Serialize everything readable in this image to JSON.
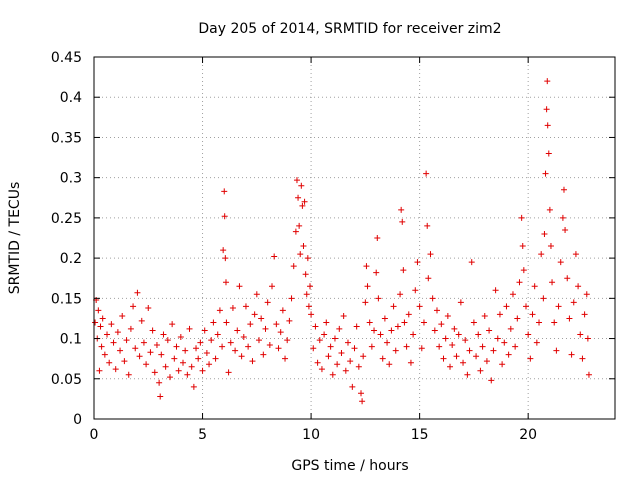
{
  "chart_data": {
    "type": "scatter",
    "title": "Day 205 of 2014, SRMTID for receiver zim2",
    "xlabel": "GPS time / hours",
    "ylabel": "SRMTID / TECUs",
    "xlim": [
      0,
      24
    ],
    "ylim": [
      0,
      0.45
    ],
    "xticks": [
      0,
      5,
      10,
      15,
      20
    ],
    "xtick_labels": [
      "0",
      "5",
      "10",
      "15",
      "20"
    ],
    "yticks": [
      0,
      0.05,
      0.1,
      0.15,
      0.2,
      0.25,
      0.3,
      0.35,
      0.4,
      0.45
    ],
    "ytick_labels": [
      "0",
      "0.05",
      "0.1",
      "0.15",
      "0.2",
      "0.25",
      "0.3",
      "0.35",
      "0.4",
      "0.45"
    ],
    "grid": true,
    "marker": "+",
    "color": "#e00000",
    "series": [
      {
        "name": "SRMTID",
        "points": [
          [
            0.05,
            0.12
          ],
          [
            0.1,
            0.148
          ],
          [
            0.15,
            0.1
          ],
          [
            0.2,
            0.135
          ],
          [
            0.25,
            0.06
          ],
          [
            0.3,
            0.115
          ],
          [
            0.35,
            0.09
          ],
          [
            0.4,
            0.125
          ],
          [
            0.5,
            0.08
          ],
          [
            0.6,
            0.105
          ],
          [
            0.7,
            0.07
          ],
          [
            0.8,
            0.118
          ],
          [
            0.9,
            0.095
          ],
          [
            1.0,
            0.062
          ],
          [
            1.1,
            0.108
          ],
          [
            1.2,
            0.085
          ],
          [
            1.3,
            0.128
          ],
          [
            1.4,
            0.072
          ],
          [
            1.5,
            0.098
          ],
          [
            1.6,
            0.055
          ],
          [
            1.7,
            0.112
          ],
          [
            1.8,
            0.14
          ],
          [
            1.9,
            0.088
          ],
          [
            2.0,
            0.157
          ],
          [
            2.1,
            0.078
          ],
          [
            2.2,
            0.122
          ],
          [
            2.3,
            0.095
          ],
          [
            2.4,
            0.068
          ],
          [
            2.5,
            0.138
          ],
          [
            2.6,
            0.083
          ],
          [
            2.7,
            0.11
          ],
          [
            2.8,
            0.058
          ],
          [
            2.9,
            0.092
          ],
          [
            3.0,
            0.045
          ],
          [
            3.05,
            0.028
          ],
          [
            3.1,
            0.08
          ],
          [
            3.2,
            0.105
          ],
          [
            3.3,
            0.065
          ],
          [
            3.4,
            0.098
          ],
          [
            3.5,
            0.052
          ],
          [
            3.6,
            0.118
          ],
          [
            3.7,
            0.075
          ],
          [
            3.8,
            0.09
          ],
          [
            3.9,
            0.06
          ],
          [
            4.0,
            0.102
          ],
          [
            4.1,
            0.07
          ],
          [
            4.2,
            0.085
          ],
          [
            4.3,
            0.055
          ],
          [
            4.4,
            0.112
          ],
          [
            4.5,
            0.065
          ],
          [
            4.6,
            0.04
          ],
          [
            4.7,
            0.088
          ],
          [
            4.8,
            0.075
          ],
          [
            4.9,
            0.095
          ],
          [
            5.0,
            0.06
          ],
          [
            5.1,
            0.11
          ],
          [
            5.2,
            0.082
          ],
          [
            5.3,
            0.068
          ],
          [
            5.4,
            0.098
          ],
          [
            5.5,
            0.12
          ],
          [
            5.6,
            0.075
          ],
          [
            5.7,
            0.105
          ],
          [
            5.8,
            0.135
          ],
          [
            5.9,
            0.09
          ],
          [
            5.95,
            0.21
          ],
          [
            6.0,
            0.283
          ],
          [
            6.02,
            0.252
          ],
          [
            6.05,
            0.2
          ],
          [
            6.08,
            0.17
          ],
          [
            6.1,
            0.12
          ],
          [
            6.2,
            0.058
          ],
          [
            6.3,
            0.095
          ],
          [
            6.4,
            0.138
          ],
          [
            6.5,
            0.085
          ],
          [
            6.6,
            0.11
          ],
          [
            6.7,
            0.165
          ],
          [
            6.8,
            0.078
          ],
          [
            6.9,
            0.102
          ],
          [
            7.0,
            0.14
          ],
          [
            7.1,
            0.09
          ],
          [
            7.2,
            0.118
          ],
          [
            7.3,
            0.072
          ],
          [
            7.4,
            0.13
          ],
          [
            7.5,
            0.155
          ],
          [
            7.6,
            0.098
          ],
          [
            7.7,
            0.125
          ],
          [
            7.8,
            0.08
          ],
          [
            7.9,
            0.112
          ],
          [
            8.0,
            0.145
          ],
          [
            8.1,
            0.092
          ],
          [
            8.2,
            0.165
          ],
          [
            8.3,
            0.202
          ],
          [
            8.4,
            0.118
          ],
          [
            8.5,
            0.088
          ],
          [
            8.6,
            0.108
          ],
          [
            8.7,
            0.135
          ],
          [
            8.8,
            0.075
          ],
          [
            8.9,
            0.098
          ],
          [
            9.0,
            0.122
          ],
          [
            9.1,
            0.15
          ],
          [
            9.2,
            0.19
          ],
          [
            9.3,
            0.233
          ],
          [
            9.35,
            0.297
          ],
          [
            9.4,
            0.275
          ],
          [
            9.45,
            0.24
          ],
          [
            9.5,
            0.205
          ],
          [
            9.55,
            0.29
          ],
          [
            9.6,
            0.265
          ],
          [
            9.65,
            0.215
          ],
          [
            9.7,
            0.27
          ],
          [
            9.75,
            0.18
          ],
          [
            9.8,
            0.155
          ],
          [
            9.85,
            0.2
          ],
          [
            9.9,
            0.14
          ],
          [
            9.95,
            0.165
          ],
          [
            10.0,
            0.13
          ],
          [
            10.1,
            0.088
          ],
          [
            10.2,
            0.115
          ],
          [
            10.3,
            0.07
          ],
          [
            10.4,
            0.098
          ],
          [
            10.5,
            0.062
          ],
          [
            10.6,
            0.105
          ],
          [
            10.7,
            0.12
          ],
          [
            10.8,
            0.078
          ],
          [
            10.9,
            0.09
          ],
          [
            11.0,
            0.055
          ],
          [
            11.1,
            0.1
          ],
          [
            11.2,
            0.068
          ],
          [
            11.3,
            0.112
          ],
          [
            11.4,
            0.082
          ],
          [
            11.5,
            0.128
          ],
          [
            11.6,
            0.06
          ],
          [
            11.7,
            0.095
          ],
          [
            11.8,
            0.072
          ],
          [
            11.9,
            0.04
          ],
          [
            12.0,
            0.088
          ],
          [
            12.1,
            0.115
          ],
          [
            12.2,
            0.065
          ],
          [
            12.3,
            0.032
          ],
          [
            12.35,
            0.022
          ],
          [
            12.4,
            0.078
          ],
          [
            12.5,
            0.145
          ],
          [
            12.55,
            0.19
          ],
          [
            12.6,
            0.165
          ],
          [
            12.7,
            0.12
          ],
          [
            12.8,
            0.09
          ],
          [
            12.9,
            0.11
          ],
          [
            13.0,
            0.182
          ],
          [
            13.05,
            0.225
          ],
          [
            13.1,
            0.15
          ],
          [
            13.2,
            0.105
          ],
          [
            13.3,
            0.075
          ],
          [
            13.4,
            0.125
          ],
          [
            13.5,
            0.095
          ],
          [
            13.6,
            0.068
          ],
          [
            13.7,
            0.11
          ],
          [
            13.8,
            0.14
          ],
          [
            13.9,
            0.085
          ],
          [
            14.0,
            0.115
          ],
          [
            14.1,
            0.155
          ],
          [
            14.15,
            0.26
          ],
          [
            14.2,
            0.245
          ],
          [
            14.25,
            0.185
          ],
          [
            14.3,
            0.12
          ],
          [
            14.4,
            0.09
          ],
          [
            14.5,
            0.13
          ],
          [
            14.6,
            0.07
          ],
          [
            14.7,
            0.105
          ],
          [
            14.8,
            0.16
          ],
          [
            14.9,
            0.195
          ],
          [
            15.0,
            0.14
          ],
          [
            15.1,
            0.088
          ],
          [
            15.2,
            0.12
          ],
          [
            15.3,
            0.305
          ],
          [
            15.35,
            0.24
          ],
          [
            15.4,
            0.175
          ],
          [
            15.5,
            0.205
          ],
          [
            15.6,
            0.15
          ],
          [
            15.7,
            0.11
          ],
          [
            15.8,
            0.135
          ],
          [
            15.9,
            0.09
          ],
          [
            16.0,
            0.118
          ],
          [
            16.1,
            0.075
          ],
          [
            16.2,
            0.1
          ],
          [
            16.3,
            0.128
          ],
          [
            16.4,
            0.065
          ],
          [
            16.5,
            0.092
          ],
          [
            16.6,
            0.112
          ],
          [
            16.7,
            0.078
          ],
          [
            16.8,
            0.105
          ],
          [
            16.9,
            0.145
          ],
          [
            17.0,
            0.07
          ],
          [
            17.1,
            0.098
          ],
          [
            17.2,
            0.055
          ],
          [
            17.3,
            0.085
          ],
          [
            17.4,
            0.195
          ],
          [
            17.5,
            0.12
          ],
          [
            17.6,
            0.078
          ],
          [
            17.7,
            0.105
          ],
          [
            17.8,
            0.06
          ],
          [
            17.9,
            0.09
          ],
          [
            18.0,
            0.128
          ],
          [
            18.1,
            0.072
          ],
          [
            18.2,
            0.11
          ],
          [
            18.3,
            0.048
          ],
          [
            18.4,
            0.085
          ],
          [
            18.5,
            0.16
          ],
          [
            18.6,
            0.1
          ],
          [
            18.7,
            0.13
          ],
          [
            18.8,
            0.068
          ],
          [
            18.9,
            0.095
          ],
          [
            19.0,
            0.14
          ],
          [
            19.1,
            0.08
          ],
          [
            19.2,
            0.112
          ],
          [
            19.3,
            0.155
          ],
          [
            19.4,
            0.09
          ],
          [
            19.5,
            0.125
          ],
          [
            19.6,
            0.17
          ],
          [
            19.7,
            0.25
          ],
          [
            19.75,
            0.215
          ],
          [
            19.8,
            0.185
          ],
          [
            19.9,
            0.14
          ],
          [
            20.0,
            0.105
          ],
          [
            20.1,
            0.075
          ],
          [
            20.2,
            0.13
          ],
          [
            20.3,
            0.165
          ],
          [
            20.4,
            0.095
          ],
          [
            20.5,
            0.12
          ],
          [
            20.6,
            0.205
          ],
          [
            20.7,
            0.15
          ],
          [
            20.75,
            0.23
          ],
          [
            20.8,
            0.305
          ],
          [
            20.85,
            0.385
          ],
          [
            20.88,
            0.42
          ],
          [
            20.9,
            0.365
          ],
          [
            20.95,
            0.33
          ],
          [
            21.0,
            0.26
          ],
          [
            21.05,
            0.215
          ],
          [
            21.1,
            0.17
          ],
          [
            21.2,
            0.12
          ],
          [
            21.3,
            0.085
          ],
          [
            21.4,
            0.14
          ],
          [
            21.5,
            0.195
          ],
          [
            21.6,
            0.25
          ],
          [
            21.65,
            0.285
          ],
          [
            21.7,
            0.235
          ],
          [
            21.8,
            0.175
          ],
          [
            21.9,
            0.125
          ],
          [
            22.0,
            0.08
          ],
          [
            22.1,
            0.145
          ],
          [
            22.2,
            0.205
          ],
          [
            22.3,
            0.165
          ],
          [
            22.4,
            0.105
          ],
          [
            22.5,
            0.075
          ],
          [
            22.6,
            0.13
          ],
          [
            22.7,
            0.155
          ],
          [
            22.75,
            0.1
          ],
          [
            22.8,
            0.055
          ]
        ]
      }
    ]
  }
}
